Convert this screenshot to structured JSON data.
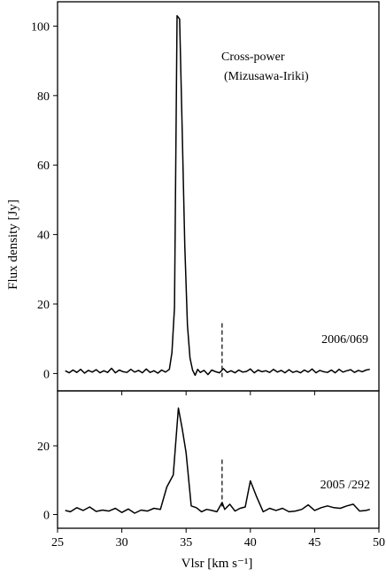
{
  "chart_data": [
    {
      "type": "line",
      "annotation_title": "Cross-power",
      "annotation_subtitle": "(Mizusawa-Iriki)",
      "epoch_label": "2006/069",
      "xlabel": "Vlsr [km s⁻¹]",
      "ylabel": "Flux density [Jy]",
      "xlim": [
        25,
        50
      ],
      "ylim": [
        -5,
        107
      ],
      "yticks": [
        0,
        20,
        40,
        60,
        80,
        100
      ],
      "xticks": [
        25,
        30,
        35,
        40,
        45,
        50
      ],
      "dashed_marker_x": 37.8,
      "dashed_marker_yrange": [
        -1,
        14.5
      ],
      "series": [
        {
          "x": [
            25.6,
            25.9,
            26.2,
            26.5,
            26.8,
            27.1,
            27.4,
            27.7,
            28.0,
            28.3,
            28.6,
            28.9,
            29.2,
            29.5,
            29.8,
            30.1,
            30.4,
            30.7,
            31.0,
            31.3,
            31.6,
            31.9,
            32.2,
            32.5,
            32.8,
            33.1,
            33.4,
            33.7,
            33.9,
            34.1,
            34.3,
            34.5,
            34.7,
            34.9,
            35.1,
            35.3,
            35.5,
            35.7,
            35.9,
            36.1,
            36.4,
            36.7,
            37.0,
            37.3,
            37.6,
            37.9,
            38.2,
            38.5,
            38.8,
            39.1,
            39.4,
            39.7,
            40.0,
            40.3,
            40.6,
            40.9,
            41.2,
            41.5,
            41.8,
            42.1,
            42.4,
            42.7,
            43.0,
            43.3,
            43.6,
            43.9,
            44.2,
            44.5,
            44.8,
            45.1,
            45.4,
            45.7,
            46.0,
            46.3,
            46.6,
            46.9,
            47.2,
            47.5,
            47.8,
            48.1,
            48.4,
            48.7,
            49.0,
            49.3
          ],
          "y": [
            0.8,
            0.2,
            1.0,
            0.3,
            1.2,
            0.1,
            0.9,
            0.4,
            1.1,
            0.2,
            0.8,
            0.3,
            1.5,
            0.2,
            1.0,
            0.5,
            0.3,
            1.2,
            0.4,
            0.9,
            0.2,
            1.3,
            0.3,
            0.8,
            0.1,
            1.0,
            0.4,
            1.2,
            6.0,
            19.0,
            103.0,
            102.0,
            70.0,
            37.0,
            14.0,
            4.5,
            1.0,
            -0.5,
            1.2,
            0.3,
            0.9,
            -0.3,
            1.0,
            0.5,
            0.2,
            1.4,
            0.3,
            0.8,
            0.2,
            1.0,
            0.4,
            0.6,
            1.3,
            0.2,
            1.0,
            0.5,
            0.8,
            0.3,
            1.2,
            0.4,
            0.9,
            0.2,
            1.1,
            0.3,
            0.7,
            0.2,
            1.0,
            0.4,
            1.3,
            0.2,
            0.9,
            0.5,
            0.3,
            1.0,
            0.2,
            1.2,
            0.4,
            0.8,
            1.1,
            0.3,
            0.9,
            0.5,
            1.0,
            1.2
          ]
        }
      ]
    },
    {
      "type": "line",
      "epoch_label": "2005 /292",
      "xlim": [
        25,
        50
      ],
      "ylim": [
        -4,
        36
      ],
      "yticks": [
        0,
        20
      ],
      "xticks": [
        25,
        30,
        35,
        40,
        45,
        50
      ],
      "dashed_marker_x": 37.8,
      "dashed_marker_yrange": [
        2,
        16
      ],
      "series": [
        {
          "x": [
            25.6,
            26.0,
            26.5,
            27.0,
            27.5,
            28.0,
            28.5,
            29.0,
            29.5,
            30.0,
            30.5,
            31.0,
            31.5,
            32.0,
            32.5,
            33.0,
            33.5,
            34.0,
            34.4,
            34.7,
            35.0,
            35.4,
            35.8,
            36.2,
            36.6,
            37.0,
            37.4,
            37.8,
            38.0,
            38.4,
            38.8,
            39.2,
            39.6,
            40.0,
            40.5,
            41.0,
            41.5,
            42.0,
            42.5,
            43.0,
            43.5,
            44.0,
            44.5,
            45.0,
            45.5,
            46.0,
            46.5,
            47.0,
            47.5,
            48.0,
            48.5,
            49.0,
            49.3
          ],
          "y": [
            1.2,
            0.8,
            2.0,
            1.2,
            2.2,
            0.9,
            1.3,
            1.0,
            1.8,
            0.6,
            1.6,
            0.4,
            1.3,
            1.0,
            1.8,
            1.5,
            8.0,
            11.5,
            31.0,
            25.0,
            18.0,
            2.5,
            2.0,
            0.8,
            1.5,
            1.2,
            0.8,
            3.5,
            1.5,
            3.0,
            1.0,
            1.8,
            2.2,
            9.8,
            5.0,
            0.8,
            1.8,
            1.2,
            1.8,
            0.8,
            1.0,
            1.5,
            2.8,
            1.2,
            2.0,
            2.5,
            2.0,
            1.8,
            2.5,
            3.0,
            1.0,
            1.2,
            1.5
          ]
        }
      ]
    }
  ]
}
